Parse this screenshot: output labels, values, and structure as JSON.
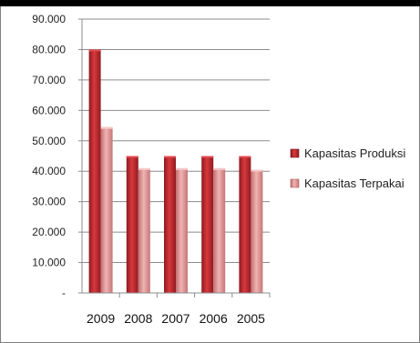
{
  "chart_data": {
    "type": "bar",
    "title": "",
    "xlabel": "",
    "ylabel": "",
    "categories": [
      "2009",
      "2008",
      "2007",
      "2006",
      "2005"
    ],
    "series": [
      {
        "name": "Kapasitas Produksi",
        "values": [
          80000,
          45000,
          45000,
          45000,
          45000
        ],
        "color": "#c0272d"
      },
      {
        "name": "Kapasitas Terpakai",
        "values": [
          54500,
          41000,
          41000,
          41000,
          40500
        ],
        "color": "#e79a9a"
      }
    ],
    "ylim": [
      0,
      90000
    ],
    "ytick_labels": [
      "-",
      "10.000",
      "20.000",
      "30.000",
      "40.000",
      "50.000",
      "60.000",
      "70.000",
      "80.000",
      "90.000"
    ],
    "grid": true,
    "legend": "right"
  }
}
